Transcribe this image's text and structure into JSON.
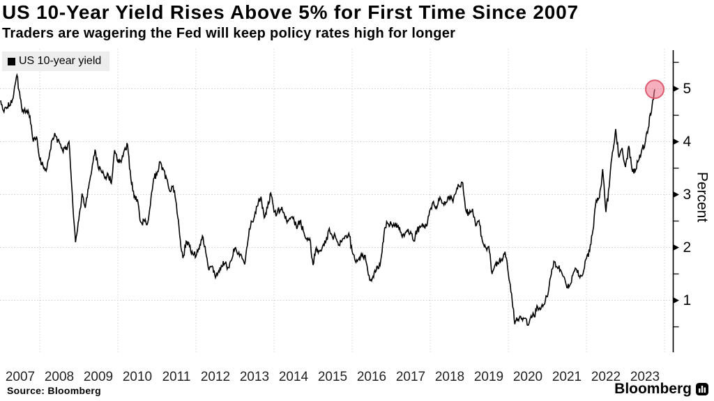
{
  "header": {
    "title": "US 10-Year Yield Rises Above 5% for First Time Since 2007",
    "subtitle": "Traders are wagering the Fed will keep policy rates high for longer"
  },
  "legend": {
    "series_label": "US 10-year yield",
    "swatch_color": "#000000"
  },
  "source": "Source: Bloomberg",
  "branding": "Bloomberg",
  "chart_data": {
    "type": "line",
    "title": "US 10-year yield",
    "xlabel": "",
    "ylabel": "Percent",
    "grid": true,
    "legend_position": "top-left",
    "line_color": "#000000",
    "gridline_color": "#cccccc",
    "ylim": [
      0.02,
      5.73
    ],
    "xlim_years": [
      2007.0,
      2024.2
    ],
    "y_ticks": [
      1,
      2,
      3,
      4,
      5
    ],
    "y_minor_ticks": [
      0.5,
      1.5,
      2.5,
      3.5,
      4.5,
      5.5
    ],
    "x_tick_labels": [
      "2007",
      "2008",
      "2009",
      "2010",
      "2011",
      "2012",
      "2013",
      "2014",
      "2015",
      "2016",
      "2017",
      "2018",
      "2019",
      "2020",
      "2021",
      "2022",
      "2023"
    ],
    "x_gridline_years": [
      2008,
      2010,
      2012,
      2014,
      2016,
      2018,
      2020,
      2022,
      2024
    ],
    "endpoint_highlight": {
      "value": 4.99,
      "fill": "#EC6E86",
      "fill_opacity": 0.55,
      "stroke": "#D94F63",
      "radius_px": 13
    },
    "series": [
      {
        "name": "US 10-year yield",
        "x_start_year": 2007.0,
        "x_interval_months": 1,
        "values": [
          4.78,
          4.56,
          4.65,
          4.69,
          4.9,
          5.26,
          4.82,
          4.55,
          4.59,
          4.48,
          4.0,
          4.1,
          3.67,
          3.55,
          3.45,
          3.77,
          4.06,
          4.1,
          3.99,
          3.83,
          3.85,
          4.0,
          3.0,
          2.1,
          2.52,
          3.02,
          2.75,
          3.12,
          3.47,
          3.85,
          3.5,
          3.42,
          3.31,
          3.39,
          3.21,
          3.84,
          3.62,
          3.61,
          3.84,
          3.94,
          3.3,
          2.95,
          2.91,
          2.48,
          2.52,
          2.43,
          2.8,
          3.3,
          3.38,
          3.62,
          3.47,
          3.3,
          3.06,
          3.16,
          2.82,
          2.23,
          1.8,
          2.12,
          2.02,
          1.88,
          1.83,
          1.97,
          2.22,
          1.92,
          1.57,
          1.65,
          1.43,
          1.56,
          1.64,
          1.7,
          1.62,
          1.77,
          1.99,
          1.88,
          1.85,
          1.68,
          2.14,
          2.5,
          2.59,
          2.79,
          2.96,
          2.56,
          2.75,
          3.03,
          2.67,
          2.66,
          2.72,
          2.66,
          2.47,
          2.54,
          2.57,
          2.35,
          2.5,
          2.31,
          2.17,
          2.17,
          1.67,
          2.0,
          1.93,
          2.04,
          2.13,
          2.36,
          2.19,
          2.17,
          2.05,
          2.15,
          2.22,
          2.27,
          1.93,
          1.74,
          1.78,
          1.84,
          1.85,
          1.48,
          1.37,
          1.57,
          1.6,
          1.84,
          2.37,
          2.45,
          2.45,
          2.4,
          2.39,
          2.29,
          2.21,
          2.31,
          2.3,
          2.12,
          2.33,
          2.38,
          2.42,
          2.41,
          2.72,
          2.87,
          2.74,
          2.95,
          2.83,
          2.85,
          2.96,
          2.86,
          3.06,
          3.16,
          3.22,
          2.69,
          2.64,
          2.73,
          2.41,
          2.51,
          2.13,
          2.0,
          2.02,
          1.5,
          1.68,
          1.69,
          1.78,
          1.92,
          1.51,
          1.13,
          0.55,
          0.64,
          0.65,
          0.66,
          0.53,
          0.71,
          0.69,
          0.88,
          0.84,
          0.92,
          1.07,
          1.44,
          1.74,
          1.63,
          1.58,
          1.45,
          1.24,
          1.3,
          1.52,
          1.58,
          1.43,
          1.51,
          1.79,
          1.93,
          2.32,
          2.89,
          2.94,
          3.48,
          2.67,
          3.15,
          3.8,
          4.24,
          3.7,
          3.88,
          3.52,
          3.92,
          3.48,
          3.44,
          3.64,
          3.84,
          3.96,
          4.26,
          4.57,
          4.99
        ]
      }
    ]
  }
}
